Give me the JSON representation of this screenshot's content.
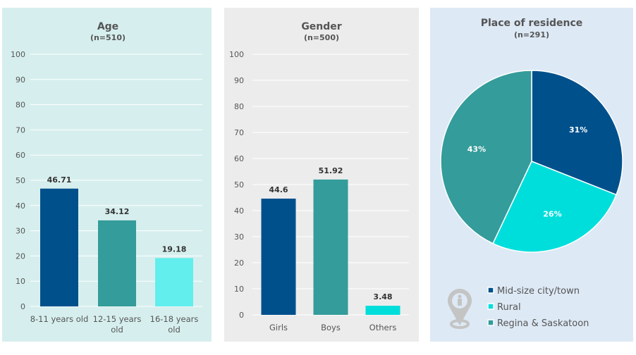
{
  "chart_data": [
    {
      "type": "bar",
      "title": "Age",
      "subtitle": "(n=510)",
      "categories": [
        "8-11 years old",
        "12-15 years old",
        "16-18 years old"
      ],
      "values": [
        46.71,
        34.12,
        19.18
      ],
      "data_labels": [
        "46.71",
        "34.12",
        "19.18"
      ],
      "colors": [
        "#00508c",
        "#349c9a",
        "#62eeed"
      ],
      "ylim": [
        0,
        100
      ],
      "yticks": [
        0,
        10,
        20,
        30,
        40,
        50,
        60,
        70,
        80,
        90,
        100
      ],
      "grid": true,
      "background": "#d6efee"
    },
    {
      "type": "bar",
      "title": "Gender",
      "subtitle": "(n=500)",
      "categories": [
        "Girls",
        "Boys",
        "Others"
      ],
      "values": [
        44.6,
        51.92,
        3.48
      ],
      "data_labels": [
        "44.6",
        "51.92",
        "3.48"
      ],
      "colors": [
        "#00508c",
        "#349c9a",
        "#00dedc"
      ],
      "ylim": [
        0,
        100
      ],
      "yticks": [
        0,
        10,
        20,
        30,
        40,
        50,
        60,
        70,
        80,
        90,
        100
      ],
      "grid": true,
      "background": "#ececec"
    },
    {
      "type": "pie",
      "title": "Place of residence",
      "subtitle": "(n=291)",
      "categories": [
        "Mid-size city/town",
        "Rural",
        "Regina & Saskatoon"
      ],
      "values": [
        31,
        26,
        43
      ],
      "data_labels": [
        "31%",
        "26%",
        "43%"
      ],
      "colors": [
        "#00508c",
        "#00dedc",
        "#349c9a"
      ],
      "legend": "bottom-right",
      "icon": "location-pin-person-icon",
      "background": "#dde9f5"
    }
  ]
}
